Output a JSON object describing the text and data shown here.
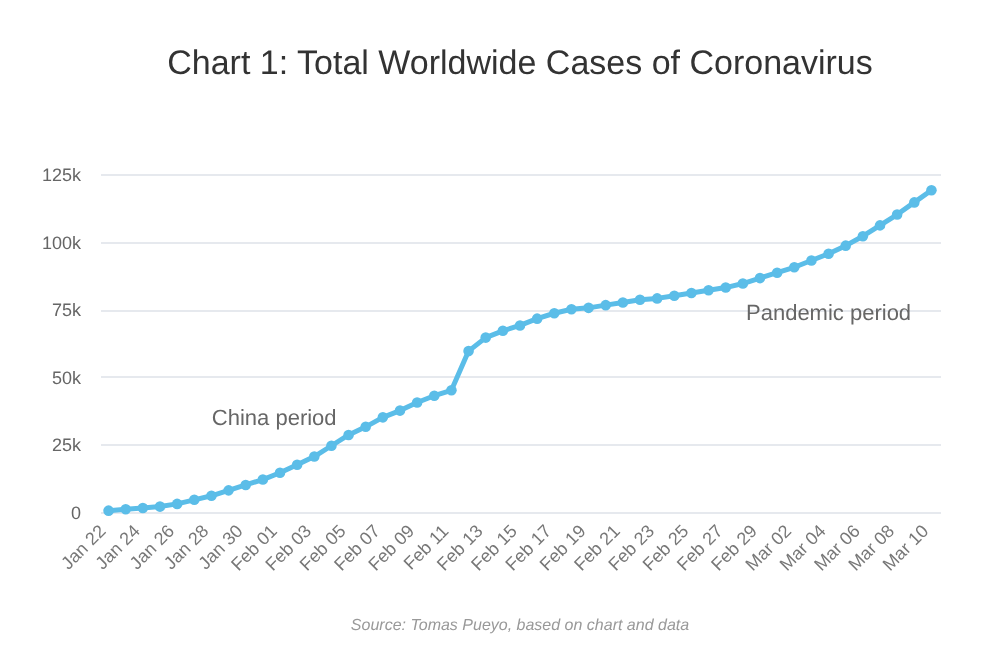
{
  "chart_data": {
    "type": "line",
    "title": "Chart 1: Total Worldwide Cases of Coronavirus",
    "categories": [
      "Jan 22",
      null,
      "Jan 24",
      null,
      "Jan 26",
      null,
      "Jan 28",
      null,
      "Jan 30",
      null,
      "Feb 01",
      null,
      "Feb 03",
      null,
      "Feb 05",
      null,
      "Feb 07",
      null,
      "Feb 09",
      null,
      "Feb 11",
      null,
      "Feb 13",
      null,
      "Feb 15",
      null,
      "Feb 17",
      null,
      "Feb 19",
      null,
      "Feb 21",
      null,
      "Feb 23",
      null,
      "Feb 25",
      null,
      "Feb 27",
      null,
      "Feb 29",
      null,
      "Mar 02",
      null,
      "Mar 04",
      null,
      "Mar 06",
      null,
      "Mar 08",
      null,
      "Mar 10"
    ],
    "series": [
      {
        "color": "#5bbde8",
        "values": [
          500,
          1000,
          1500,
          2000,
          3000,
          4500,
          6000,
          8000,
          10000,
          12000,
          14500,
          17500,
          20500,
          24500,
          28500,
          31500,
          35000,
          37500,
          40500,
          43000,
          45000,
          59500,
          64500,
          67000,
          69000,
          71500,
          73500,
          75000,
          75500,
          76500,
          77500,
          78500,
          79000,
          80000,
          81000,
          82000,
          83000,
          84500,
          86500,
          88500,
          90500,
          93000,
          95500,
          98500,
          102000,
          106000,
          110000,
          114500,
          119000
        ]
      }
    ],
    "ylim": [
      0,
      125000
    ],
    "yticks": [
      {
        "value": 0,
        "label": "0"
      },
      {
        "value": 25000,
        "label": "25k"
      },
      {
        "value": 50000,
        "label": "50k"
      },
      {
        "value": 75000,
        "label": "75k"
      },
      {
        "value": 100000,
        "label": "100k"
      },
      {
        "value": 125000,
        "label": "125k"
      }
    ],
    "grid": "y",
    "marker": "circle",
    "line_style": "solid",
    "annotations": [
      {
        "text": "China period",
        "x": "Feb 05",
        "y": 28500
      },
      {
        "text": "Pandemic period",
        "x": "Mar 04",
        "y": 95500
      },
      "Source: Tomas Pueyo, based on chart and data"
    ]
  }
}
